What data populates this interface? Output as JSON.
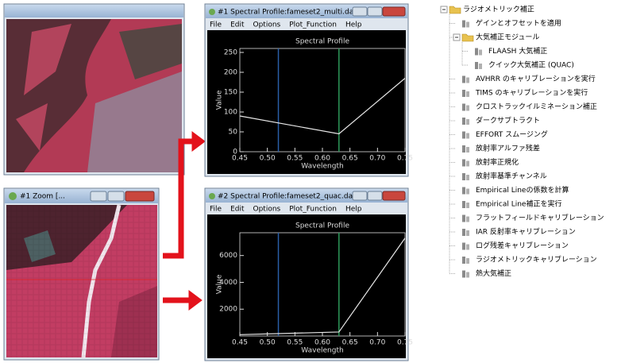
{
  "zoom_window": {
    "title": "#1 Zoom [..."
  },
  "profile_windows": [
    {
      "title": "#1 Spectral Profile:fameset2_multi.dat",
      "menu": [
        "File",
        "Edit",
        "Options",
        "Plot_Function",
        "Help"
      ]
    },
    {
      "title": "#2 Spectral Profile:fameset2_quac.dat",
      "menu": [
        "File",
        "Edit",
        "Options",
        "Plot_Function",
        "Help"
      ]
    }
  ],
  "chart_data": [
    {
      "type": "line",
      "title": "Spectral Profile",
      "x_label": "Wavelength",
      "y_label": "Value",
      "x": [
        0.45,
        0.63,
        0.75
      ],
      "values": [
        90,
        45,
        185
      ],
      "color": "#e8e8e8",
      "markers": [
        {
          "x": 0.52,
          "color": "#2a5fa8"
        },
        {
          "x": 0.63,
          "color": "#2e9a5a"
        }
      ],
      "xlim": [
        0.45,
        0.75
      ],
      "ylim": [
        0,
        260
      ],
      "xticks": [
        0.45,
        {
          "value": 0.5,
          "label": "0.50"
        },
        0.55,
        {
          "value": 0.6,
          "label": "0.60"
        },
        0.65,
        {
          "value": 0.7,
          "label": "0.70"
        },
        0.75
      ],
      "yticks": [
        0,
        50,
        100,
        150,
        200,
        250
      ]
    },
    {
      "type": "line",
      "title": "Spectral Profile",
      "x_label": "Wavelength",
      "y_label": "Value",
      "x": [
        0.45,
        0.63,
        0.75
      ],
      "values": [
        100,
        300,
        7300
      ],
      "color": "#e8e8e8",
      "markers": [
        {
          "x": 0.52,
          "color": "#2a5fa8"
        },
        {
          "x": 0.63,
          "color": "#2e9a5a"
        }
      ],
      "xlim": [
        0.45,
        0.75
      ],
      "ylim": [
        0,
        7700
      ],
      "xticks": [
        0.45,
        {
          "value": 0.5,
          "label": "0.50"
        },
        0.55,
        {
          "value": 0.6,
          "label": "0.60"
        },
        0.65,
        {
          "value": 0.7,
          "label": "0.70"
        },
        0.75
      ],
      "yticks": [
        2000,
        4000,
        6000
      ]
    }
  ],
  "tree": {
    "label": "ラジオメトリック補正",
    "children": [
      {
        "label": "ゲインとオフセットを適用"
      },
      {
        "label": "大気補正モジュール",
        "children": [
          {
            "label": "FLAASH 大気補正"
          },
          {
            "label": "クイック大気補正 (QUAC)"
          }
        ]
      },
      {
        "label": "AVHRR のキャリブレーションを実行"
      },
      {
        "label": "TIMS のキャリブレーションを実行"
      },
      {
        "label": "クロストラックイルミネーション補正"
      },
      {
        "label": "ダークサブトラクト"
      },
      {
        "label": "EFFORT スムージング"
      },
      {
        "label": "放射率アルファ残差"
      },
      {
        "label": "放射率正規化"
      },
      {
        "label": "放射率基準チャンネル"
      },
      {
        "label": "Empirical Lineの係数を計算"
      },
      {
        "label": "Empirical Line補正を実行"
      },
      {
        "label": "フラットフィールドキャリブレーション"
      },
      {
        "label": "IAR 反射率キャリブレーション"
      },
      {
        "label": "ログ残差キャリブレーション"
      },
      {
        "label": "ラジオメトリックキャリブレーション"
      },
      {
        "label": "熱大気補正"
      }
    ]
  }
}
